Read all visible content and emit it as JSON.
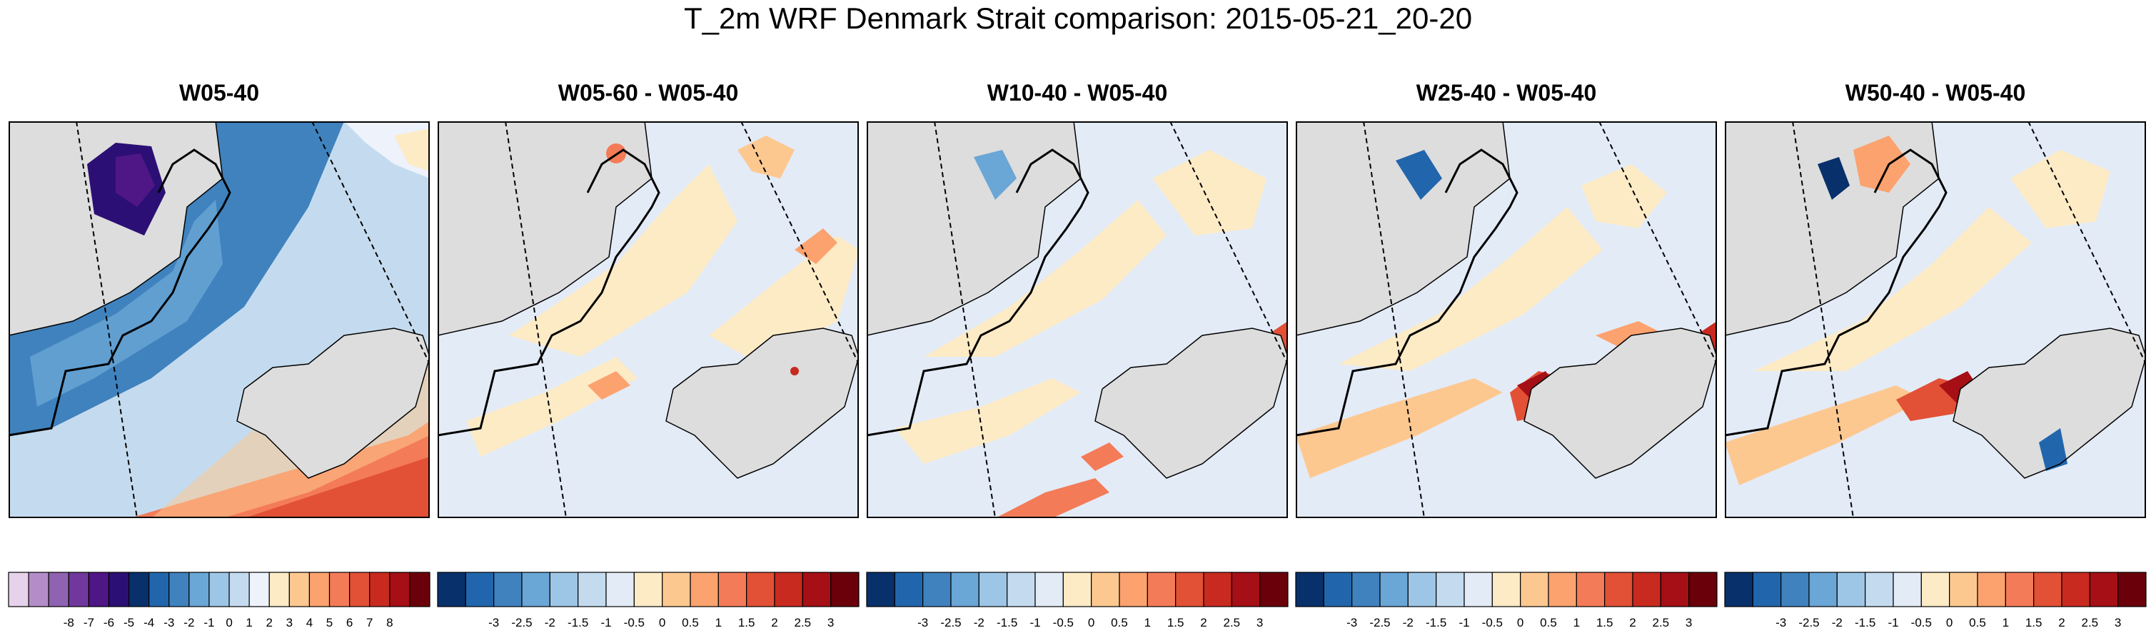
{
  "title": "T_2m WRF Denmark Strait comparison: 2015-05-21_20-20",
  "chart_data": [
    {
      "type": "heatmap",
      "title": "W05-40",
      "colorbar": {
        "labels": [
          "-8",
          "-7",
          "-6",
          "-5",
          "-4",
          "-3",
          "-2",
          "-1",
          "0",
          "1",
          "2",
          "3",
          "4",
          "5",
          "6",
          "7",
          "8"
        ],
        "colors": [
          "#e6d2ea",
          "#b48dc8",
          "#9062b2",
          "#70389c",
          "#4f1686",
          "#2c0f74",
          "#08306b",
          "#2166ac",
          "#3f82be",
          "#6aa6d6",
          "#9dc6e6",
          "#c4dbef",
          "#edf2fb",
          "#fdebc6",
          "#fdc890",
          "#fca26e",
          "#f47b58",
          "#e25036",
          "#c82a1f",
          "#a50f15",
          "#6a0009"
        ]
      }
    },
    {
      "type": "heatmap",
      "title": "W05-60 - W05-40",
      "colorbar": {
        "labels": [
          "-3",
          "-2.5",
          "-2",
          "-1.5",
          "-1",
          "-0.5",
          "0",
          "0.5",
          "1",
          "1.5",
          "2",
          "2.5",
          "3"
        ],
        "colors": [
          "#08306b",
          "#2166ac",
          "#3f82be",
          "#6aa6d6",
          "#9dc6e6",
          "#c4dbef",
          "#e3ebf7",
          "#fdebc6",
          "#fdc890",
          "#fca26e",
          "#f47b58",
          "#e25036",
          "#c82a1f",
          "#a50f15",
          "#6a0009"
        ]
      }
    },
    {
      "type": "heatmap",
      "title": "W10-40 - W05-40",
      "colorbar": {
        "labels": [
          "-3",
          "-2.5",
          "-2",
          "-1.5",
          "-1",
          "-0.5",
          "0",
          "0.5",
          "1",
          "1.5",
          "2",
          "2.5",
          "3"
        ],
        "colors": [
          "#08306b",
          "#2166ac",
          "#3f82be",
          "#6aa6d6",
          "#9dc6e6",
          "#c4dbef",
          "#e3ebf7",
          "#fdebc6",
          "#fdc890",
          "#fca26e",
          "#f47b58",
          "#e25036",
          "#c82a1f",
          "#a50f15",
          "#6a0009"
        ]
      }
    },
    {
      "type": "heatmap",
      "title": "W25-40 - W05-40",
      "colorbar": {
        "labels": [
          "-3",
          "-2.5",
          "-2",
          "-1.5",
          "-1",
          "-0.5",
          "0",
          "0.5",
          "1",
          "1.5",
          "2",
          "2.5",
          "3"
        ],
        "colors": [
          "#08306b",
          "#2166ac",
          "#3f82be",
          "#6aa6d6",
          "#9dc6e6",
          "#c4dbef",
          "#e3ebf7",
          "#fdebc6",
          "#fdc890",
          "#fca26e",
          "#f47b58",
          "#e25036",
          "#c82a1f",
          "#a50f15",
          "#6a0009"
        ]
      }
    },
    {
      "type": "heatmap",
      "title": "W50-40 - W05-40",
      "colorbar": {
        "labels": [
          "-3",
          "-2.5",
          "-2",
          "-1.5",
          "-1",
          "-0.5",
          "0",
          "0.5",
          "1",
          "1.5",
          "2",
          "2.5",
          "3"
        ],
        "colors": [
          "#08306b",
          "#2166ac",
          "#3f82be",
          "#6aa6d6",
          "#9dc6e6",
          "#c4dbef",
          "#e3ebf7",
          "#fdebc6",
          "#fdc890",
          "#fca26e",
          "#f47b58",
          "#e25036",
          "#c82a1f",
          "#a50f15",
          "#6a0009"
        ]
      }
    }
  ]
}
